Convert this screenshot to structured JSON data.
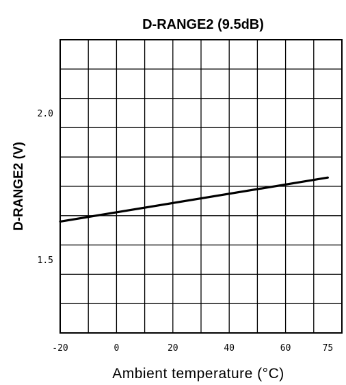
{
  "chart_data": {
    "type": "line",
    "title": "D-RANGE2 (9.5dB)",
    "xlabel": "Ambient temperature (°C)",
    "ylabel": "D-RANGE2 (V)",
    "xlim": [
      -20,
      80
    ],
    "ylim": [
      1.25,
      2.25
    ],
    "x_ticks": [
      -20,
      0,
      20,
      40,
      60,
      75
    ],
    "x_tick_labels": [
      "-20",
      "0",
      "20",
      "40",
      "60",
      "75"
    ],
    "y_ticks": [
      1.5,
      2.0
    ],
    "y_tick_labels": [
      "1.5",
      "2.0"
    ],
    "grid": true,
    "series": [
      {
        "x": [
          -20,
          75
        ],
        "y": [
          1.63,
          1.78
        ]
      }
    ]
  }
}
